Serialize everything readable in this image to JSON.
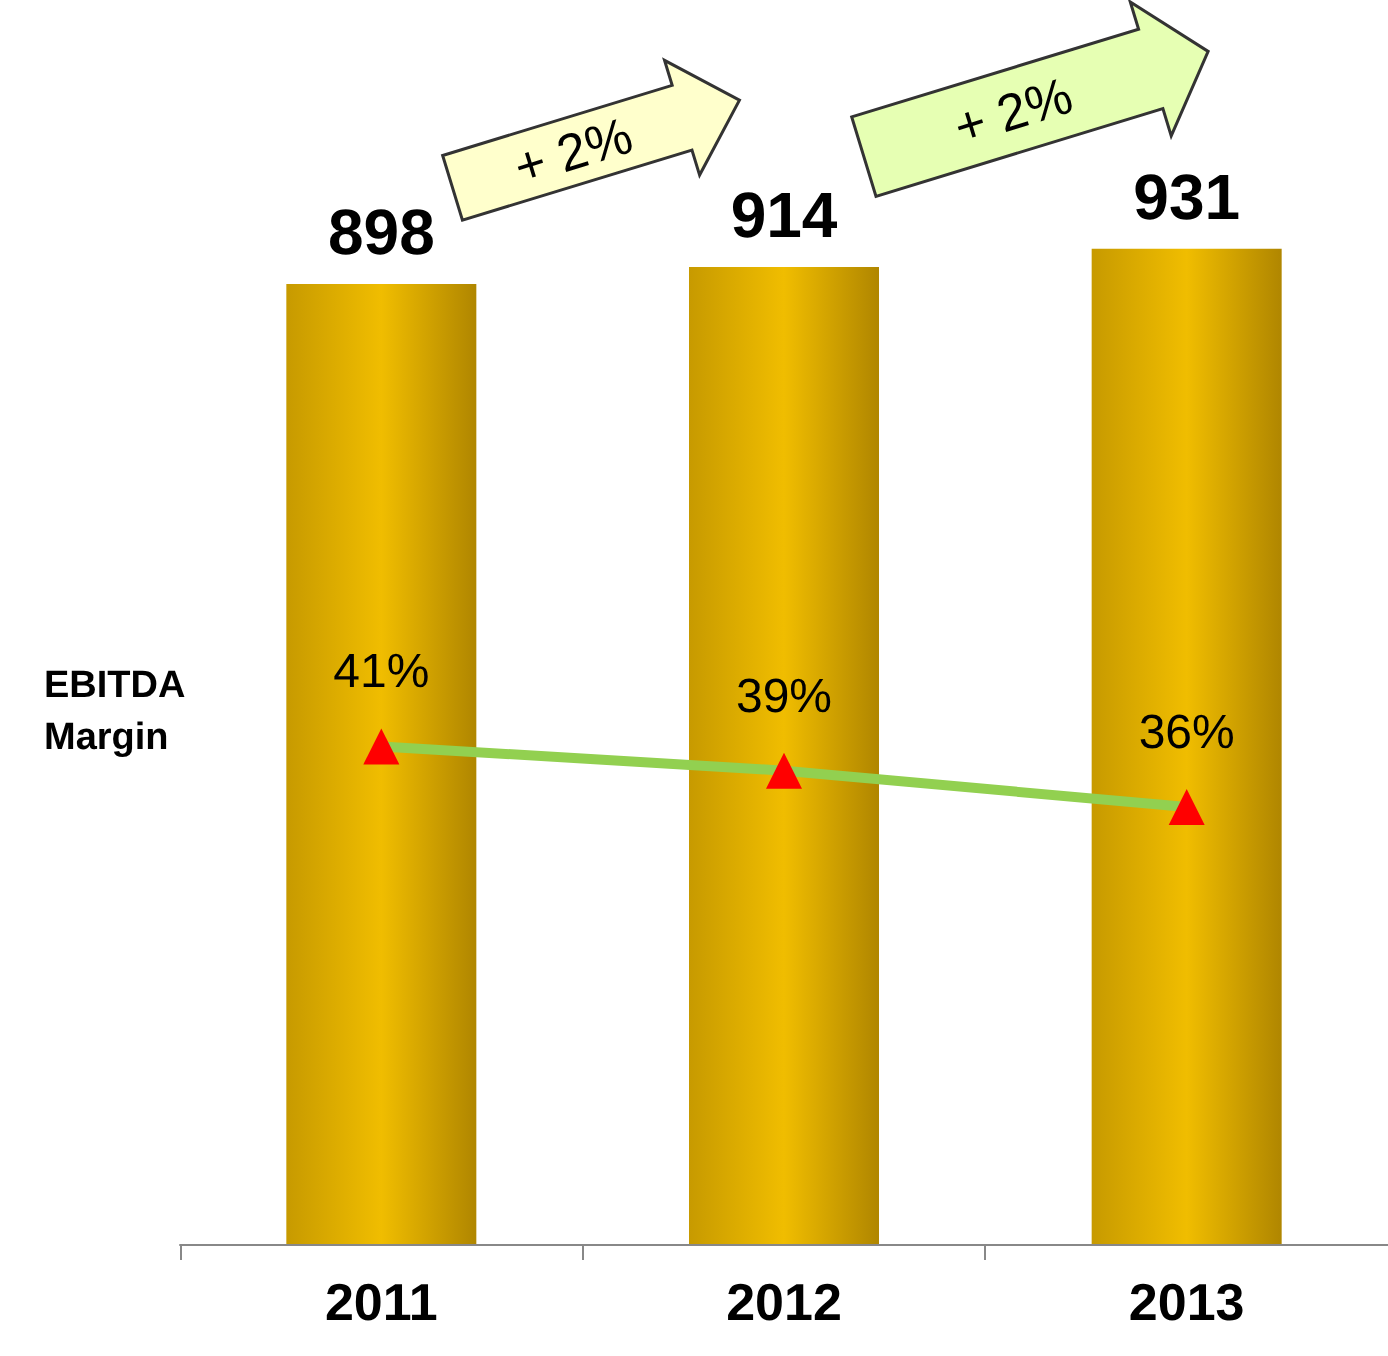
{
  "chart_data": {
    "type": "bar",
    "categories": [
      "2011",
      "2012",
      "2013"
    ],
    "series": [
      {
        "color": "#f0bd00",
        "values": [
          898,
          914,
          931
        ]
      },
      {
        "type": "line",
        "axis": "y2",
        "color": "#92d050",
        "colors": [
          "#ff0000",
          "#ff0000",
          "#ff0000"
        ],
        "values": [
          41,
          39,
          36
        ],
        "value_labels": [
          "41%",
          "39%",
          "36%"
        ],
        "marker": "triangle"
      }
    ],
    "data_labels": true,
    "tick_labels": "x",
    "annotations": [
      "EBITDA Margin",
      "+ 2%",
      "+ 2%"
    ],
    "grid": false
  }
}
